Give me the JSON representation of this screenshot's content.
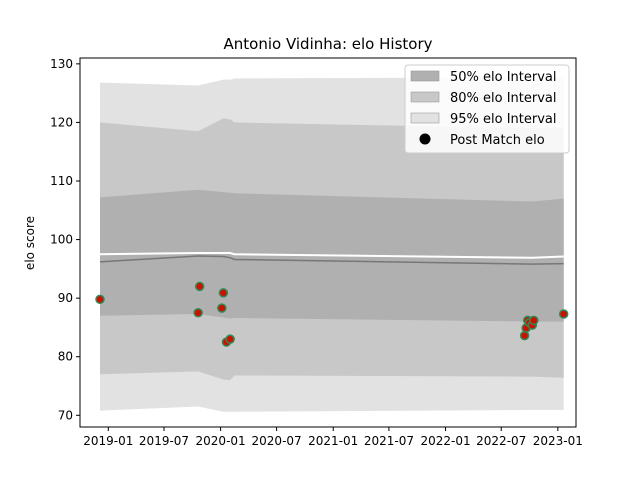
{
  "chart_data": {
    "type": "area",
    "title": "Antonio Vidinha: elo History",
    "xlabel": "",
    "ylabel": "elo score",
    "x_ticks": [
      "2019-01",
      "2019-07",
      "2020-01",
      "2020-07",
      "2021-01",
      "2021-07",
      "2022-01",
      "2022-07",
      "2023-01"
    ],
    "y_ticks": [
      70,
      80,
      90,
      100,
      110,
      120,
      130
    ],
    "xlim": [
      "2018-10-01",
      "2023-03-01"
    ],
    "ylim": [
      68,
      131
    ],
    "grid": false,
    "legend_position": "top-right",
    "colors": {
      "band50": "#b0b0b0",
      "band80": "#c8c8c8",
      "band95": "#e2e2e2",
      "median_line": "#777777",
      "mean_line": "#ffffff",
      "point_fill": "#cc1100",
      "point_edge": "#2e8b57"
    },
    "legend": [
      {
        "label": "50% elo Interval",
        "kind": "patch",
        "color": "#b0b0b0"
      },
      {
        "label": "80% elo Interval",
        "kind": "patch",
        "color": "#c8c8c8"
      },
      {
        "label": "95% elo Interval",
        "kind": "patch",
        "color": "#e2e2e2"
      },
      {
        "label": "Post Match elo",
        "kind": "marker",
        "color": "#000000"
      }
    ],
    "bands": {
      "x": [
        "2018-12-05",
        "2019-10-20",
        "2020-01-10",
        "2020-02-01",
        "2020-02-15",
        "2022-10-10",
        "2023-01-20"
      ],
      "p95_low": [
        70.8,
        71.5,
        70.6,
        70.6,
        70.6,
        70.9,
        70.9
      ],
      "p95_high": [
        126.8,
        126.3,
        127.3,
        127.3,
        127.5,
        127.7,
        127.7
      ],
      "p80_low": [
        77.0,
        77.5,
        76.1,
        76.0,
        76.8,
        76.6,
        76.4
      ],
      "p80_high": [
        120.0,
        118.5,
        120.7,
        120.5,
        120.0,
        119.0,
        119.0
      ],
      "p50_low": [
        87.0,
        87.3,
        86.7,
        86.5,
        86.6,
        86.0,
        86.0
      ],
      "p50_high": [
        107.2,
        108.5,
        108.1,
        108.0,
        107.9,
        106.5,
        107.0
      ],
      "median": [
        96.2,
        97.2,
        97.1,
        96.9,
        96.6,
        95.8,
        95.9
      ],
      "mean": [
        97.5,
        97.7,
        97.7,
        97.7,
        97.5,
        96.9,
        97.1
      ]
    },
    "points": [
      {
        "x": "2018-12-05",
        "y": 89.8
      },
      {
        "x": "2019-10-20",
        "y": 87.5
      },
      {
        "x": "2019-10-25",
        "y": 92.0
      },
      {
        "x": "2020-01-05",
        "y": 88.3
      },
      {
        "x": "2020-01-10",
        "y": 90.9
      },
      {
        "x": "2020-01-20",
        "y": 82.5
      },
      {
        "x": "2020-02-01",
        "y": 83.0
      },
      {
        "x": "2022-09-15",
        "y": 83.6
      },
      {
        "x": "2022-09-20",
        "y": 84.9
      },
      {
        "x": "2022-09-25",
        "y": 86.2
      },
      {
        "x": "2022-10-01",
        "y": 85.8
      },
      {
        "x": "2022-10-10",
        "y": 85.4
      },
      {
        "x": "2022-10-15",
        "y": 86.2
      },
      {
        "x": "2023-01-20",
        "y": 87.3
      }
    ]
  }
}
